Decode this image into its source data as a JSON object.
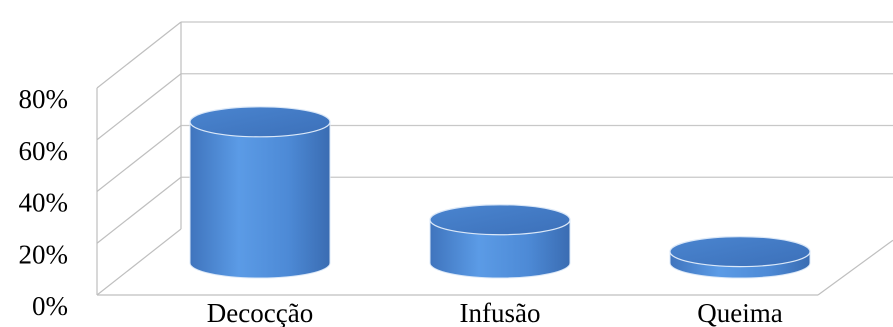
{
  "chart_data": {
    "type": "bar",
    "style": "3d-cylinder",
    "categories": [
      "Decocção",
      "Infusão",
      "Queima"
    ],
    "values": [
      62,
      19,
      5
    ],
    "ylim": [
      0,
      80
    ],
    "yticks": [
      "0%",
      "20%",
      "40%",
      "60%",
      "80%"
    ],
    "ytick_values": [
      0,
      20,
      40,
      60,
      80
    ],
    "grid": true,
    "legend": "none",
    "bar_color": "#4f8fdd",
    "bar_color_dark": "#3a6fb8",
    "bar_color_light": "#6aa6e8"
  }
}
